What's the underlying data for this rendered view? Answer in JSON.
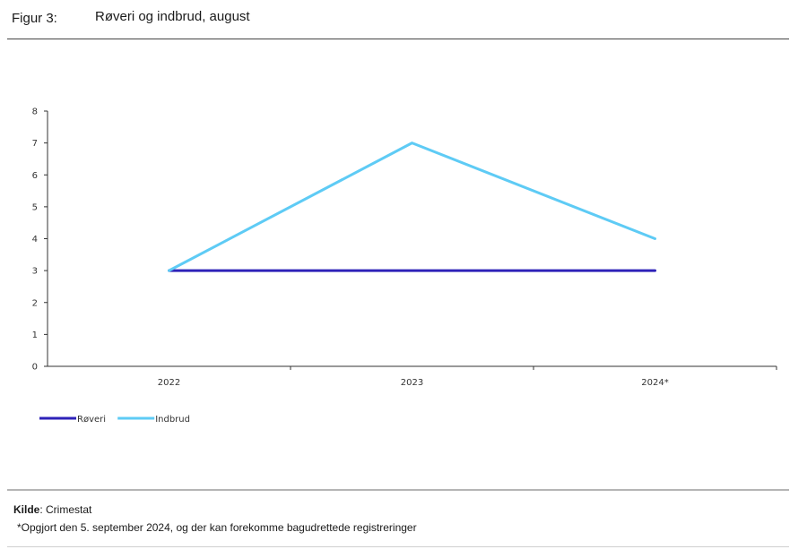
{
  "figure": {
    "label": "Figur 3:",
    "title": "Røveri og indbrud, august"
  },
  "chart_data": {
    "type": "line",
    "x": [
      "2022",
      "2023",
      "2024*"
    ],
    "series": [
      {
        "name": "Røveri",
        "values": [
          3,
          3,
          3
        ],
        "color": "#2e22b8"
      },
      {
        "name": "Indbrud",
        "values": [
          3,
          7,
          4
        ],
        "color": "#5ecbf5"
      }
    ],
    "ylim": [
      0,
      8
    ],
    "yticks": [
      0,
      1,
      2,
      3,
      4,
      5,
      6,
      7,
      8
    ],
    "grid": false,
    "legend_position": "bottom-left"
  },
  "footer": {
    "source_label": "Kilde",
    "source_text": ": Crimestat",
    "note": "*Opgjort den 5. september 2024, og der kan forekomme bagudrettede registreringer"
  }
}
